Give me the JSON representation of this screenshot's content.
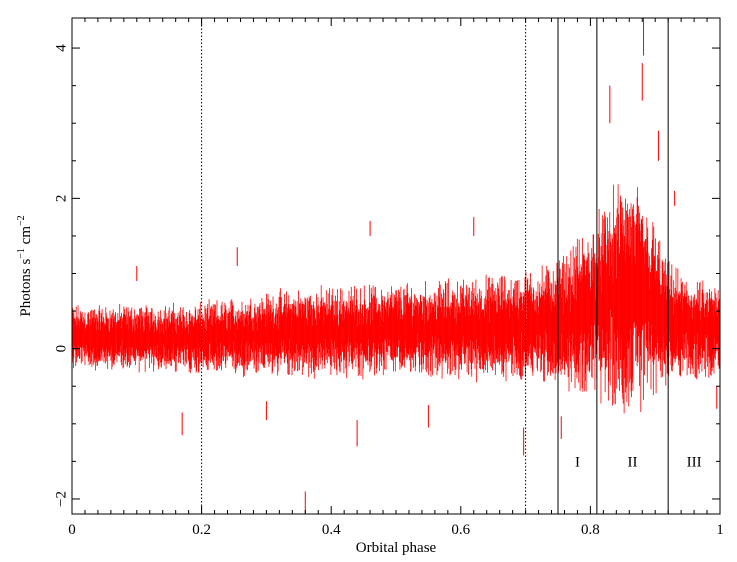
{
  "chart_data": {
    "type": "scatter",
    "style": "vertical error bars (light curve)",
    "xlabel": "Orbital phase",
    "ylabel_parts": {
      "base": "Photons s",
      "exp1": "−1",
      "mid": " cm",
      "exp2": "−2"
    },
    "xlim": [
      0,
      1
    ],
    "ylim": [
      -2.2,
      4.4
    ],
    "x_ticks": [
      {
        "value": 0,
        "label": "0"
      },
      {
        "value": 0.2,
        "label": "0.2"
      },
      {
        "value": 0.4,
        "label": "0.4"
      },
      {
        "value": 0.6,
        "label": "0.6"
      },
      {
        "value": 0.8,
        "label": "0.8"
      },
      {
        "value": 1,
        "label": "1"
      }
    ],
    "y_ticks": [
      {
        "value": -2,
        "label": "−2"
      },
      {
        "value": 0,
        "label": "0"
      },
      {
        "value": 2,
        "label": "2"
      },
      {
        "value": 4,
        "label": "4"
      }
    ],
    "series_color": "#ff0000",
    "envelope": {
      "x": [
        0,
        0.1,
        0.2,
        0.3,
        0.4,
        0.5,
        0.6,
        0.7,
        0.75,
        0.8,
        0.85,
        0.88,
        0.92,
        0.96,
        1.0
      ],
      "mean": [
        0.15,
        0.15,
        0.12,
        0.2,
        0.22,
        0.24,
        0.26,
        0.3,
        0.35,
        0.5,
        0.7,
        0.65,
        0.35,
        0.25,
        0.22
      ],
      "half_err": [
        0.25,
        0.25,
        0.28,
        0.32,
        0.35,
        0.36,
        0.38,
        0.42,
        0.48,
        0.65,
        0.9,
        0.85,
        0.45,
        0.38,
        0.35
      ]
    },
    "notable_points": [
      {
        "x": 0.882,
        "y_low": 3.9,
        "y_high": 4.4
      },
      {
        "x": 0.88,
        "y_low": 3.3,
        "y_high": 3.8
      },
      {
        "x": 0.36,
        "y_low": -2.2,
        "y_high": -1.9
      },
      {
        "x": 0.697,
        "y_low": -1.42,
        "y_high": -1.05
      },
      {
        "x": 0.46,
        "y_low": 1.5,
        "y_high": 1.7
      },
      {
        "x": 0.62,
        "y_low": 1.5,
        "y_high": 1.75
      },
      {
        "x": 0.1,
        "y_low": 0.9,
        "y_high": 1.1
      },
      {
        "x": 0.255,
        "y_low": 1.1,
        "y_high": 1.35
      },
      {
        "x": 0.44,
        "y_low": -1.3,
        "y_high": -0.95
      },
      {
        "x": 0.17,
        "y_low": -1.15,
        "y_high": -0.85
      },
      {
        "x": 0.755,
        "y_low": -1.2,
        "y_high": -0.9
      },
      {
        "x": 0.83,
        "y_low": 3.0,
        "y_high": 3.5
      },
      {
        "x": 0.905,
        "y_low": 2.5,
        "y_high": 2.9
      },
      {
        "x": 0.93,
        "y_low": 1.9,
        "y_high": 2.1
      },
      {
        "x": 0.995,
        "y_low": -0.8,
        "y_high": -0.5
      },
      {
        "x": 0.3,
        "y_low": -0.95,
        "y_high": -0.7
      },
      {
        "x": 0.55,
        "y_low": -1.05,
        "y_high": -0.75
      }
    ],
    "dotted_lines": [
      0.2,
      0.7
    ],
    "solid_lines": [
      0.75,
      0.81,
      0.92,
      1.0
    ],
    "regions": [
      {
        "label": "I",
        "x": 0.78
      },
      {
        "label": "II",
        "x": 0.865
      },
      {
        "label": "III",
        "x": 0.96
      }
    ],
    "region_label_y": -1.5,
    "grid": false,
    "legend": "none"
  }
}
